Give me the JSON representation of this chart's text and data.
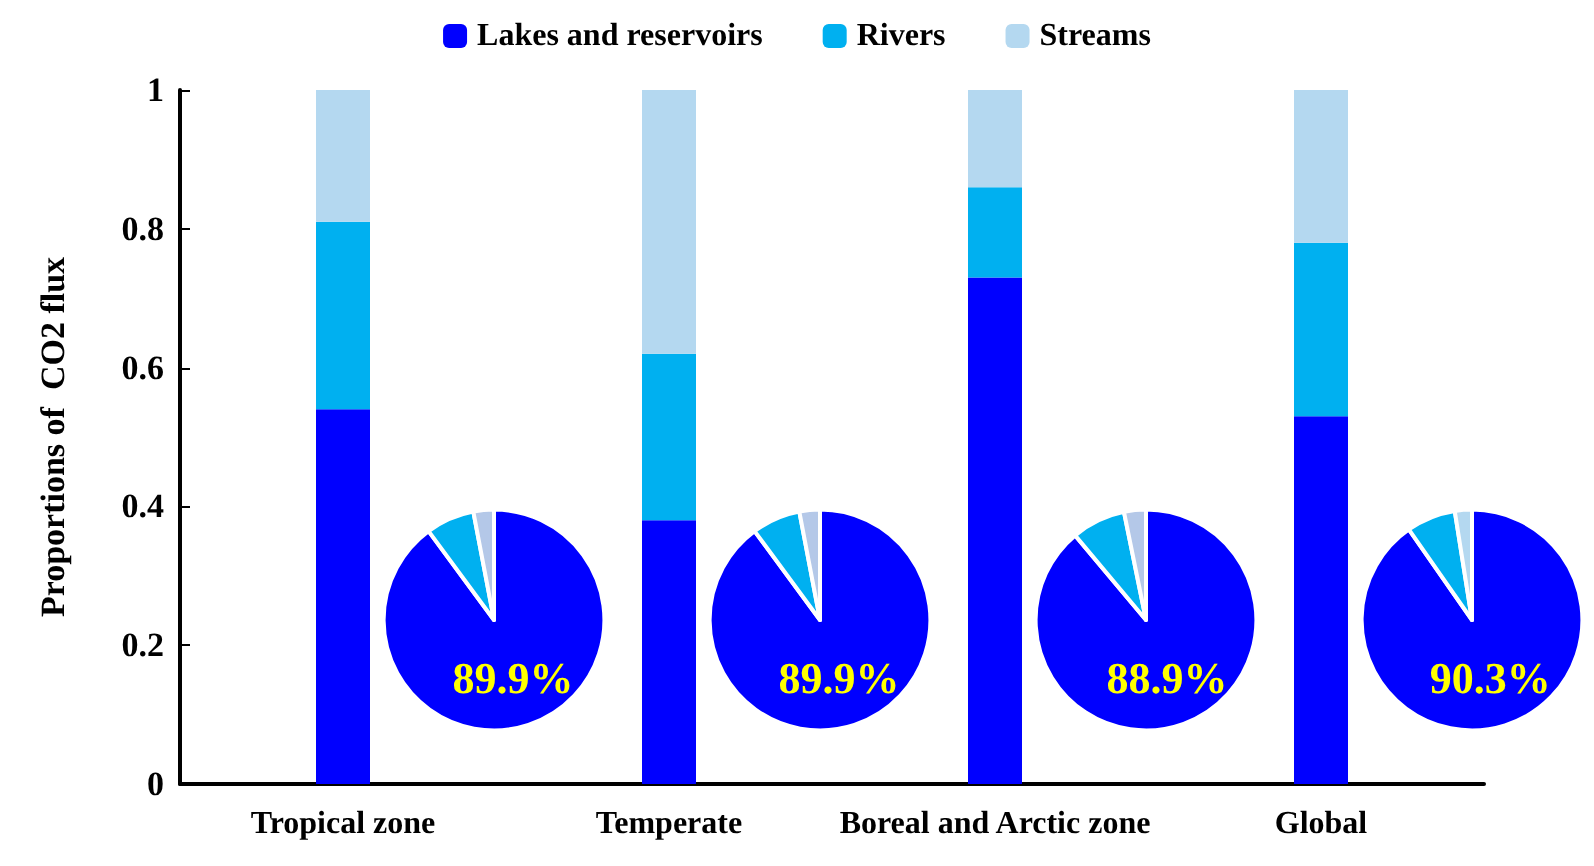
{
  "chart_data": [
    {
      "type": "bar",
      "stacked": true,
      "ylabel": "Proportions of  CO2 flux",
      "categories": [
        "Tropical zone",
        "Temperate",
        "Boreal and Arctic zone",
        "Global"
      ],
      "series": [
        {
          "name": "Lakes and reservoirs",
          "color": "#0000ff",
          "values": [
            0.54,
            0.38,
            0.73,
            0.53
          ]
        },
        {
          "name": "Rivers",
          "color": "#00b0f0",
          "values": [
            0.27,
            0.24,
            0.13,
            0.25
          ]
        },
        {
          "name": "Streams",
          "color": "#b4d8f0",
          "values": [
            0.19,
            0.38,
            0.14,
            0.22
          ]
        }
      ],
      "ylim": [
        0,
        1
      ],
      "yticks": [
        0,
        0.2,
        0.4,
        0.6,
        0.8,
        1
      ],
      "legend": "top",
      "grid": false
    },
    {
      "type": "pie",
      "categories": [
        null,
        null,
        null
      ],
      "values": [
        89.9,
        7.1,
        3.0
      ],
      "colors": [
        "#0000ff",
        "#00b0f0",
        "#b4c8e8"
      ],
      "value_labels": [
        "89.9%",
        null,
        null
      ]
    },
    {
      "type": "pie",
      "categories": [
        null,
        null,
        null
      ],
      "values": [
        89.9,
        7.1,
        3.0
      ],
      "colors": [
        "#0000ff",
        "#00b0f0",
        "#b4c8e8"
      ],
      "value_labels": [
        "89.9%",
        null,
        null
      ]
    },
    {
      "type": "pie",
      "categories": [
        null,
        null,
        null
      ],
      "values": [
        88.9,
        7.9,
        3.2
      ],
      "colors": [
        "#0000ff",
        "#00b0f0",
        "#b4c8e8"
      ],
      "value_labels": [
        "88.9%",
        null,
        null
      ]
    },
    {
      "type": "pie",
      "categories": [
        null,
        null,
        null
      ],
      "values": [
        90.3,
        7.2,
        2.5
      ],
      "colors": [
        "#0000ff",
        "#00b0f0",
        "#b4d8f0"
      ],
      "value_labels": [
        "90.3%",
        null,
        null
      ]
    }
  ]
}
